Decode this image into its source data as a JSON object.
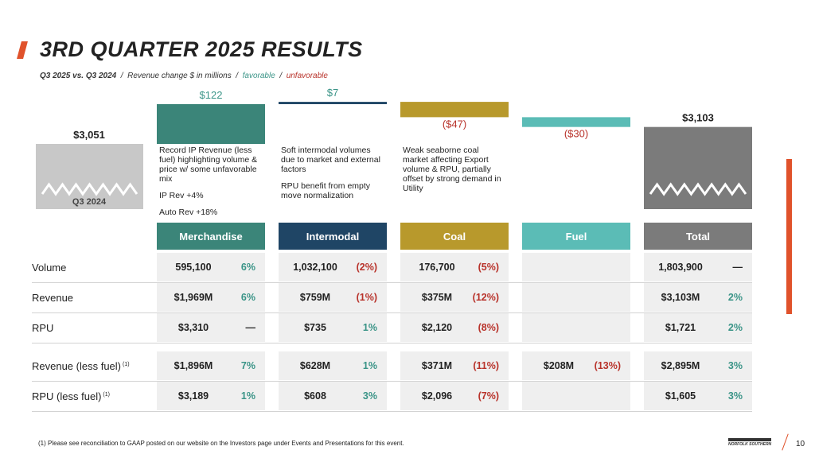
{
  "header": {
    "title": "3RD QUARTER 2025 RESULTS",
    "subtitle": {
      "lead": "Q3 2025 vs. Q3 2024",
      "separator": "/",
      "text": "Revenue change $ in millions",
      "favorable": "favorable",
      "unfavorable": "unfavorable"
    }
  },
  "colors": {
    "favorable": "#3a9487",
    "unfavorable": "#b8322a",
    "neutral": "#222222"
  },
  "waterfall": {
    "start": {
      "value": 3051,
      "label": "$3,051",
      "caption": "Q3 2024"
    },
    "steps": [
      {
        "value": 122,
        "label": "$122"
      },
      {
        "value": 7,
        "label": "$7"
      },
      {
        "value": -47,
        "label": "($47)"
      },
      {
        "value": -30,
        "label": "($30)"
      }
    ],
    "end": {
      "value": 3103,
      "label": "$3,103"
    }
  },
  "columns": [
    {
      "name": "Merchandise",
      "color": "#3b8579",
      "description": [
        "Record IP Revenue (less fuel) highlighting volume & price w/ some unfavorable mix",
        "IP Rev +4%",
        "Auto Rev +18%"
      ]
    },
    {
      "name": "Intermodal",
      "color": "#1f4565",
      "description": [
        "Soft intermodal volumes due to market and external factors",
        "RPU benefit from empty move normalization"
      ]
    },
    {
      "name": "Coal",
      "color": "#b8992c",
      "description": [
        "Weak seaborne coal market affecting Export volume & RPU, partially offset by strong demand in Utility"
      ]
    },
    {
      "name": "Fuel",
      "color": "#5bbcb6"
    },
    {
      "name": "Total",
      "color": "#7b7b7b"
    }
  ],
  "sections": [
    {
      "rows": [
        {
          "label": "Volume",
          "cells": [
            {
              "value": "595,100",
              "change": "6%",
              "tone": "favorable"
            },
            {
              "value": "1,032,100",
              "change": "(2%)",
              "tone": "unfavorable"
            },
            {
              "value": "176,700",
              "change": "(5%)",
              "tone": "unfavorable"
            },
            null,
            {
              "value": "1,803,900",
              "change": "—",
              "tone": "neutral"
            }
          ]
        },
        {
          "label": "Revenue",
          "cells": [
            {
              "value": "$1,969M",
              "change": "6%",
              "tone": "favorable"
            },
            {
              "value": "$759M",
              "change": "(1%)",
              "tone": "unfavorable"
            },
            {
              "value": "$375M",
              "change": "(12%)",
              "tone": "unfavorable"
            },
            null,
            {
              "value": "$3,103M",
              "change": "2%",
              "tone": "favorable"
            }
          ]
        },
        {
          "label": "RPU",
          "cells": [
            {
              "value": "$3,310",
              "change": "—",
              "tone": "neutral"
            },
            {
              "value": "$735",
              "change": "1%",
              "tone": "favorable"
            },
            {
              "value": "$2,120",
              "change": "(8%)",
              "tone": "unfavorable"
            },
            null,
            {
              "value": "$1,721",
              "change": "2%",
              "tone": "favorable"
            }
          ]
        }
      ]
    },
    {
      "rows": [
        {
          "label": "Revenue (less fuel)",
          "note": "(1)",
          "cells": [
            {
              "value": "$1,896M",
              "change": "7%",
              "tone": "favorable"
            },
            {
              "value": "$628M",
              "change": "1%",
              "tone": "favorable"
            },
            {
              "value": "$371M",
              "change": "(11%)",
              "tone": "unfavorable"
            },
            {
              "value": "$208M",
              "change": "(13%)",
              "tone": "unfavorable"
            },
            {
              "value": "$2,895M",
              "change": "3%",
              "tone": "favorable"
            }
          ]
        },
        {
          "label": "RPU (less fuel)",
          "note": "(1)",
          "cells": [
            {
              "value": "$3,189",
              "change": "1%",
              "tone": "favorable"
            },
            {
              "value": "$608",
              "change": "3%",
              "tone": "favorable"
            },
            {
              "value": "$2,096",
              "change": "(7%)",
              "tone": "unfavorable"
            },
            null,
            {
              "value": "$1,605",
              "change": "3%",
              "tone": "favorable"
            }
          ]
        }
      ]
    }
  ],
  "footer": {
    "footnote": "(1) Please see reconciliation to GAAP posted on our website on the Investors page under Events and Presentations for this event.",
    "logo": "NORFOLK SOUTHERN",
    "page": "10"
  }
}
